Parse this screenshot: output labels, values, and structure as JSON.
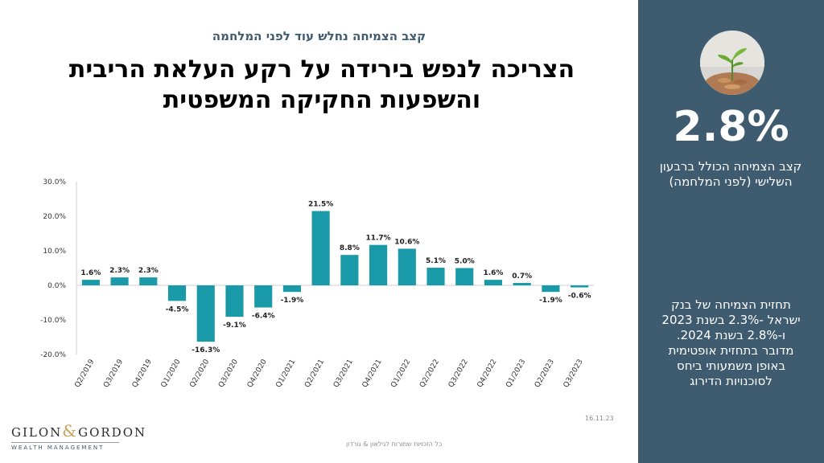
{
  "header": {
    "subtitle": "קצב הצמיחה נחלש עוד לפני המלחמה",
    "title_line1": "הצריכה לנפש בירידה על רקע העלאת הריבית",
    "title_line2": "והשפעות החקיקה המשפטית"
  },
  "sidebar": {
    "big_number": "2.8%",
    "caption": "קצב הצמיחה הכולל ברבעון השלישי (לפני המלחמה)",
    "forecast_lines": [
      "תחזית הצמיחה של בנק",
      "ישראל -2.3% בשנת 2023",
      "ו-2.8% בשנת 2024.",
      "מדובר בתחזית אופטימית",
      "באופן משמעותי ביחס",
      "לסוכנויות הדירוג"
    ]
  },
  "footer": {
    "date": "16.11.23",
    "copyright": "כל הזכויות שמורות לגילאון & גורדון",
    "logo_left": "GILON",
    "logo_amp": "&",
    "logo_right": "GORDON",
    "logo_sub": "WEALTH MANAGEMENT"
  },
  "colors": {
    "bar": "#1a9aa8",
    "sidebar": "#3f5b70"
  },
  "chart_data": {
    "type": "bar",
    "categories": [
      "Q2/2019",
      "Q3/2019",
      "Q4/2019",
      "Q1/2020",
      "Q2/2020",
      "Q3/2020",
      "Q4/2020",
      "Q1/2021",
      "Q2/2021",
      "Q3/2021",
      "Q4/2021",
      "Q1/2022",
      "Q2/2022",
      "Q3/2022",
      "Q4/2022",
      "Q1/2023",
      "Q2/2023",
      "Q3/2023"
    ],
    "values": [
      1.6,
      2.3,
      2.3,
      -4.5,
      -16.3,
      -9.1,
      -6.4,
      -1.9,
      21.5,
      8.8,
      11.7,
      10.6,
      5.1,
      5.0,
      1.6,
      0.7,
      -1.9,
      -0.6
    ],
    "labels": [
      "1.6%",
      "2.3%",
      "2.3%",
      "-4.5%",
      "-16.3%",
      "-9.1%",
      "-6.4%",
      "-1.9%",
      "21.5%",
      "8.8%",
      "11.7%",
      "10.6%",
      "5.1%",
      "5.0%",
      "1.6%",
      "0.7%",
      "-1.9%",
      "-0.6%"
    ],
    "yticks": [
      "30.0%",
      "20.0%",
      "10.0%",
      "0.0%",
      "-10.0%",
      "-20.0%"
    ],
    "ytick_values": [
      30,
      20,
      10,
      0,
      -10,
      -20
    ],
    "ylim": [
      -20,
      30
    ],
    "grid": false,
    "legend": "none"
  }
}
